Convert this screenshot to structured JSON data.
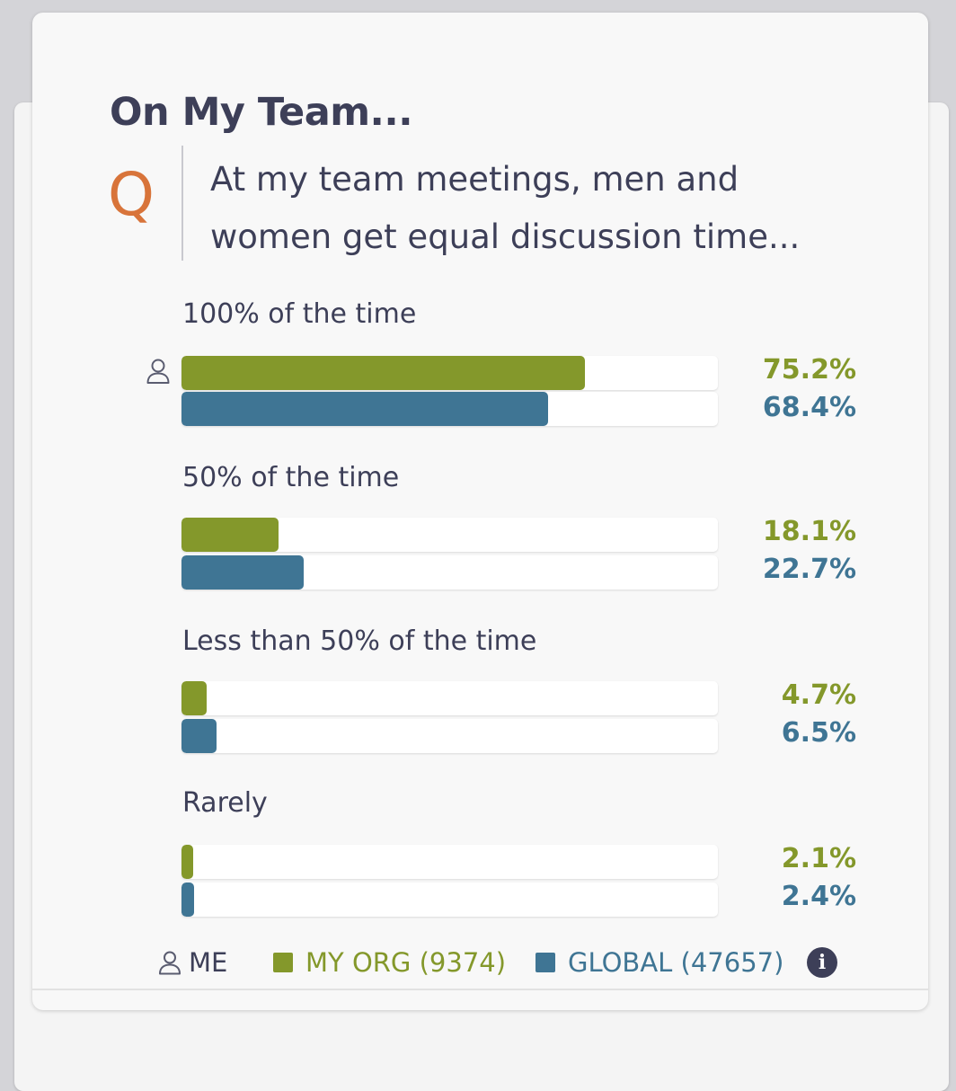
{
  "card": {
    "title": "On My Team...",
    "q_marker": "Q",
    "question_lines": [
      "At my team meetings, men and",
      "women get equal discussion time..."
    ]
  },
  "colors": {
    "my_org": "#84982b",
    "global": "#3f7594",
    "title_text": "#3d3f58",
    "q_marker": "#d8743a"
  },
  "icons": {
    "me": "person-outline-icon",
    "info": "info-icon"
  },
  "chart_data": {
    "type": "bar",
    "orientation": "horizontal",
    "xlim": [
      0,
      100
    ],
    "unit": "%",
    "categories": [
      "100% of the time",
      "50% of the time",
      "Less than 50% of the time",
      "Rarely"
    ],
    "me_answer": "100% of the time",
    "series": [
      {
        "name": "MY ORG (9374)",
        "values": [
          75.2,
          18.1,
          4.7,
          2.1
        ],
        "labels": [
          "75.2%",
          "18.1%",
          "4.7%",
          "2.1%"
        ]
      },
      {
        "name": "GLOBAL (47657)",
        "values": [
          68.4,
          22.7,
          6.5,
          2.4
        ],
        "labels": [
          "68.4%",
          "22.7%",
          "6.5%",
          "2.4%"
        ]
      }
    ]
  },
  "legend": {
    "me_label": "ME",
    "my_org_label": "MY ORG (9374)",
    "global_label": "GLOBAL (47657)",
    "info_glyph": "i"
  }
}
